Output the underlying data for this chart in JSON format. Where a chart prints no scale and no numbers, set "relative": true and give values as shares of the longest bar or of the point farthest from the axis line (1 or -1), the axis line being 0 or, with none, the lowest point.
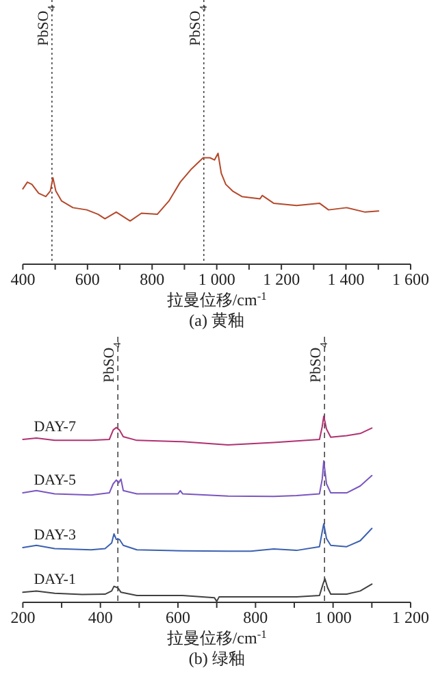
{
  "chart_data": [
    {
      "type": "line",
      "title": "(a) 黄釉",
      "xlabel": "拉曼位移/cm$^{-1}$",
      "relative": true,
      "xlim": [
        400,
        1600
      ],
      "xticks": [
        400,
        {
          "value": 500,
          "label": null
        },
        600,
        {
          "value": 700,
          "label": null
        },
        800,
        {
          "value": 900,
          "label": null
        },
        {
          "value": 1000,
          "label": "1 000"
        },
        {
          "value": 1100,
          "label": null
        },
        {
          "value": 1200,
          "label": "1 200"
        },
        {
          "value": 1300,
          "label": null
        },
        {
          "value": 1400,
          "label": "1 400"
        },
        {
          "value": 1500,
          "label": null
        },
        {
          "value": 1600,
          "label": "1 600"
        }
      ],
      "x": [
        400,
        414,
        428,
        449,
        471,
        485,
        493,
        502,
        520,
        555,
        598,
        633,
        654,
        689,
        732,
        767,
        816,
        852,
        887,
        922,
        958,
        979,
        993,
        1004,
        1014,
        1028,
        1049,
        1078,
        1134,
        1141,
        1176,
        1247,
        1318,
        1346,
        1402,
        1459,
        1501
      ],
      "values": [
        0.68,
        0.74,
        0.72,
        0.64,
        0.61,
        0.66,
        0.78,
        0.66,
        0.57,
        0.51,
        0.49,
        0.45,
        0.41,
        0.47,
        0.39,
        0.46,
        0.45,
        0.57,
        0.74,
        0.86,
        0.96,
        0.96,
        0.94,
        1,
        0.82,
        0.72,
        0.66,
        0.61,
        0.59,
        0.62,
        0.55,
        0.53,
        0.55,
        0.49,
        0.51,
        0.47,
        0.48
      ],
      "color": "#b5482a",
      "ref_lines": [
        {
          "axis": "x",
          "value": 490,
          "label": "PbSO$_{4}$",
          "line_style": "dotted"
        },
        {
          "axis": "x",
          "value": 960,
          "label": "PbSO$_{4}$",
          "line_style": "dotted"
        }
      ]
    },
    {
      "type": "line",
      "title": "(b) 绿釉",
      "xlabel": "拉曼位移/cm$^{-1}$",
      "relative": true,
      "xlim": [
        200,
        1200
      ],
      "xticks": [
        200,
        {
          "value": 300,
          "label": null
        },
        400,
        {
          "value": 500,
          "label": null
        },
        600,
        {
          "value": 700,
          "label": null
        },
        800,
        {
          "value": 900,
          "label": null
        },
        {
          "value": 1000,
          "label": "1 000"
        },
        {
          "value": 1100,
          "label": null
        },
        {
          "value": 1200,
          "label": "1 200"
        }
      ],
      "series": [
        {
          "name": "DAY-7",
          "color": "#b03070",
          "x": [
            200,
            235,
            282,
            376,
            423,
            433,
            441,
            449,
            459,
            494,
            612,
            729,
            847,
            965,
            972,
            976,
            983,
            994,
            1035,
            1070,
            1100
          ],
          "values": [
            0.875,
            0.882,
            0.87,
            0.87,
            0.875,
            0.926,
            0.939,
            0.926,
            0.89,
            0.87,
            0.863,
            0.846,
            0.858,
            0.875,
            0.944,
            1.0,
            0.931,
            0.887,
            0.895,
            0.907,
            0.936
          ]
        },
        {
          "name": "DAY-5",
          "color": "#7a55c0",
          "x": [
            200,
            235,
            282,
            376,
            423,
            433,
            441,
            447,
            453,
            459,
            494,
            600,
            606,
            612,
            729,
            847,
            906,
            965,
            972,
            976,
            983,
            994,
            1035,
            1070,
            1100
          ],
          "values": [
            0.588,
            0.6,
            0.583,
            0.576,
            0.588,
            0.637,
            0.657,
            0.642,
            0.662,
            0.6,
            0.583,
            0.583,
            0.6,
            0.583,
            0.571,
            0.569,
            0.574,
            0.583,
            0.662,
            0.76,
            0.637,
            0.588,
            0.588,
            0.625,
            0.681
          ]
        },
        {
          "name": "DAY-3",
          "color": "#3a60b0",
          "x": [
            200,
            235,
            282,
            376,
            412,
            429,
            435,
            441,
            449,
            459,
            494,
            612,
            729,
            788,
            847,
            906,
            965,
            972,
            976,
            983,
            994,
            1035,
            1070,
            1100
          ],
          "values": [
            0.294,
            0.306,
            0.289,
            0.282,
            0.289,
            0.319,
            0.368,
            0.338,
            0.338,
            0.306,
            0.282,
            0.277,
            0.275,
            0.275,
            0.287,
            0.279,
            0.299,
            0.38,
            0.422,
            0.343,
            0.306,
            0.299,
            0.331,
            0.397
          ]
        },
        {
          "name": "DAY-1",
          "color": "#404040",
          "x": [
            200,
            235,
            282,
            353,
            412,
            429,
            435,
            445,
            453,
            494,
            612,
            694,
            700,
            706,
            788,
            906,
            965,
            974,
            979,
            986,
            994,
            1035,
            1070,
            1100
          ],
          "values": [
            0.054,
            0.061,
            0.049,
            0.042,
            0.044,
            0.061,
            0.086,
            0.078,
            0.054,
            0.037,
            0.037,
            0.025,
            0.005,
            0.029,
            0.029,
            0.029,
            0.037,
            0.098,
            0.127,
            0.078,
            0.044,
            0.044,
            0.061,
            0.098
          ]
        }
      ],
      "ref_lines": [
        {
          "axis": "x",
          "value": 445,
          "label": "PbSO$_{4}$",
          "line_style": "dashed"
        },
        {
          "axis": "x",
          "value": 978,
          "label": "PbSO$_{4}$",
          "line_style": "dashed"
        }
      ]
    }
  ]
}
